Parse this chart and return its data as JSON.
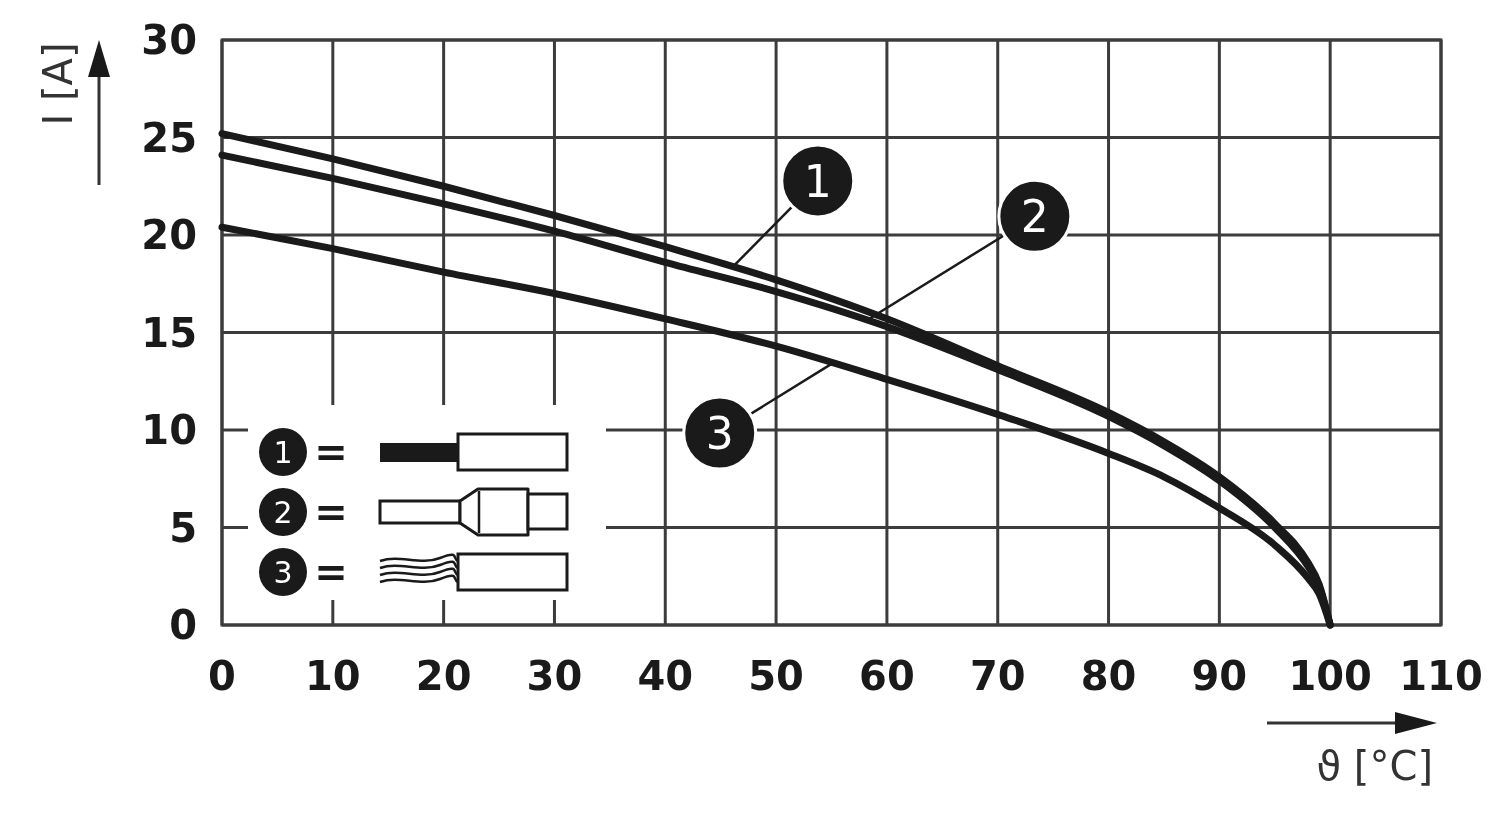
{
  "chart_data": {
    "type": "line",
    "xlabel": "ϑ [°C]",
    "ylabel": "I [A]",
    "xlim": [
      0,
      110
    ],
    "xticks": [
      0,
      10,
      20,
      30,
      40,
      50,
      60,
      70,
      80,
      90,
      100,
      110
    ],
    "ylim": [
      0,
      30
    ],
    "yticks": [
      0,
      5,
      10,
      15,
      20,
      25,
      30
    ],
    "grid": true,
    "legend": "bottom left",
    "annotations": [
      "=",
      "=",
      "="
    ],
    "x": [
      0,
      10,
      20,
      30,
      40,
      50,
      60,
      70,
      80,
      85,
      90,
      95,
      98,
      99,
      100
    ],
    "series": [
      {
        "name": "1",
        "color": "#1a1a1a",
        "values": [
          25.2,
          23.9,
          22.5,
          21.0,
          19.4,
          17.7,
          15.7,
          13.3,
          10.9,
          9.4,
          7.6,
          5.2,
          3.2,
          2.1,
          0
        ]
      },
      {
        "name": "2",
        "color": "#1a1a1a",
        "values": [
          24.1,
          22.9,
          21.6,
          20.2,
          18.6,
          17.1,
          15.3,
          13.1,
          10.7,
          9.2,
          7.4,
          5.0,
          3.0,
          2.0,
          0
        ]
      },
      {
        "name": "3",
        "color": "#1a1a1a",
        "values": [
          20.4,
          19.3,
          18.1,
          17.0,
          15.7,
          14.3,
          12.6,
          10.8,
          8.8,
          7.6,
          6.0,
          4.1,
          2.4,
          1.6,
          0
        ]
      }
    ]
  }
}
